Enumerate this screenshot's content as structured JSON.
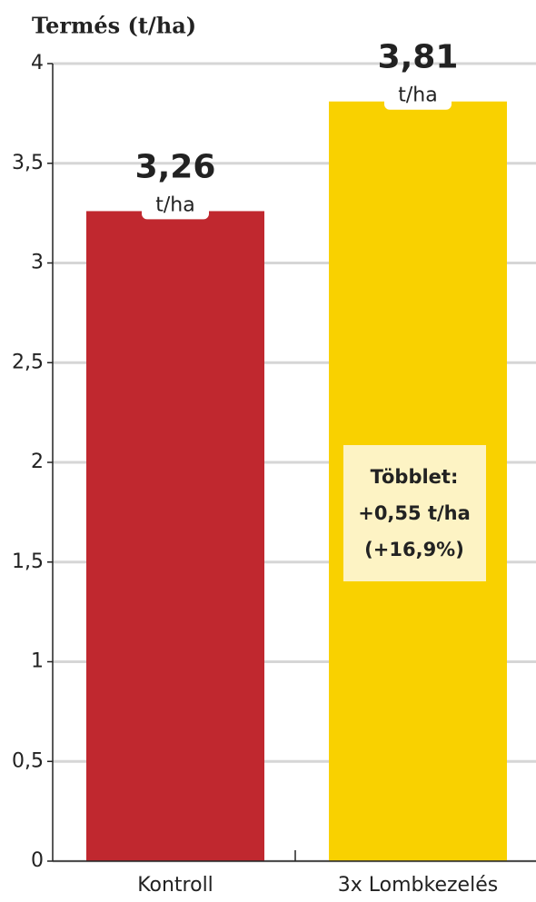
{
  "chart_data": {
    "type": "bar",
    "title": "Termés (t/ha)",
    "categories": [
      "Kontroll",
      "3x Lombkezelés"
    ],
    "values": [
      3.26,
      3.81
    ],
    "value_labels": [
      "3,26",
      "3,81"
    ],
    "value_unit": "t/ha",
    "colors": [
      "#c0282f",
      "#f9d100"
    ],
    "ylim": [
      0,
      4
    ],
    "yticks": [
      0,
      {
        "value": 0.5,
        "label": "0,5"
      },
      1,
      {
        "value": 1.5,
        "label": "1,5"
      },
      2,
      {
        "value": 2.5,
        "label": "2,5"
      },
      3,
      {
        "value": 3.5,
        "label": "3,5"
      },
      4
    ],
    "grid": true,
    "annotation": [
      "Többlet:",
      "+0,55 t/ha",
      "(+16,9%)"
    ]
  }
}
